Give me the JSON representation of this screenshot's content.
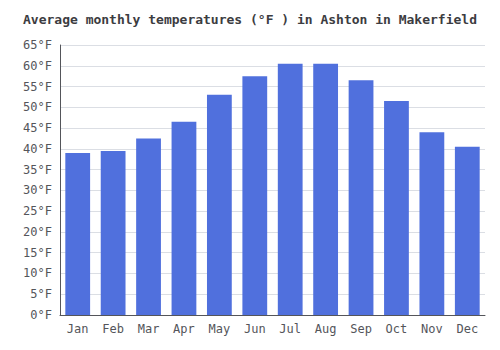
{
  "chart_data": {
    "type": "bar",
    "title": "Average monthly temperatures (°F ) in Ashton in Makerfield",
    "categories": [
      "Jan",
      "Feb",
      "Mar",
      "Apr",
      "May",
      "Jun",
      "Jul",
      "Aug",
      "Sep",
      "Oct",
      "Nov",
      "Dec"
    ],
    "values": [
      39.0,
      39.5,
      42.5,
      46.5,
      53.0,
      57.5,
      60.5,
      60.5,
      56.5,
      51.5,
      44.0,
      40.5
    ],
    "ylim": [
      0,
      65
    ],
    "yticks": [
      {
        "value": 0,
        "label": "0°F"
      },
      {
        "value": 5,
        "label": "5°F"
      },
      {
        "value": 10,
        "label": "10°F"
      },
      {
        "value": 15,
        "label": "15°F"
      },
      {
        "value": 20,
        "label": "20°F"
      },
      {
        "value": 25,
        "label": "25°F"
      },
      {
        "value": 30,
        "label": "30°F"
      },
      {
        "value": 35,
        "label": "35°F"
      },
      {
        "value": 40,
        "label": "40°F"
      },
      {
        "value": 45,
        "label": "45°F"
      },
      {
        "value": 50,
        "label": "50°F"
      },
      {
        "value": 55,
        "label": "55°F"
      },
      {
        "value": 60,
        "label": "60°F"
      },
      {
        "value": 65,
        "label": "65°F"
      }
    ],
    "grid": true
  }
}
